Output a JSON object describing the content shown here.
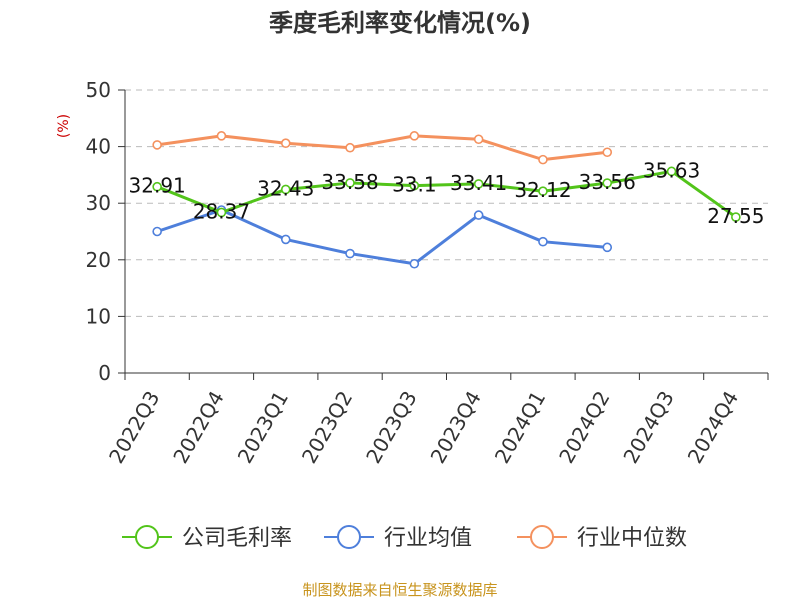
{
  "chart_data": {
    "type": "line",
    "title": "季度毛利率变化情况(%)",
    "ylabel": "(%)",
    "xlabel": "",
    "ylim": [
      0,
      50
    ],
    "yticks": [
      0,
      10,
      20,
      30,
      40,
      50
    ],
    "grid": true,
    "legend_position": "bottom",
    "categories": [
      "2022Q3",
      "2022Q4",
      "2023Q1",
      "2023Q2",
      "2023Q3",
      "2023Q4",
      "2024Q1",
      "2024Q2",
      "2024Q3",
      "2024Q4"
    ],
    "series": [
      {
        "name": "公司毛利率",
        "color": "#52c41a",
        "values": [
          32.91,
          28.37,
          32.43,
          33.58,
          33.1,
          33.41,
          32.12,
          33.56,
          35.63,
          27.55
        ],
        "labels": [
          "32.91",
          "28.37",
          "32.43",
          "33.58",
          "33.1",
          "33.41",
          "32.12",
          "33.56",
          "35.63",
          "27.55"
        ]
      },
      {
        "name": "行业均值",
        "color": "#4e7fdb",
        "values": [
          25.0,
          28.8,
          23.6,
          21.1,
          19.3,
          27.9,
          23.2,
          22.2,
          null,
          null
        ]
      },
      {
        "name": "行业中位数",
        "color": "#f4915e",
        "values": [
          40.3,
          41.9,
          40.6,
          39.8,
          41.9,
          41.3,
          37.7,
          39.0,
          null,
          null
        ]
      }
    ],
    "source": "制图数据来自恒生聚源数据库",
    "colors": {
      "axis": "#333333",
      "grid": "#bbbbbb",
      "ylabel": "#cc0000",
      "source": "#c8941e"
    }
  }
}
